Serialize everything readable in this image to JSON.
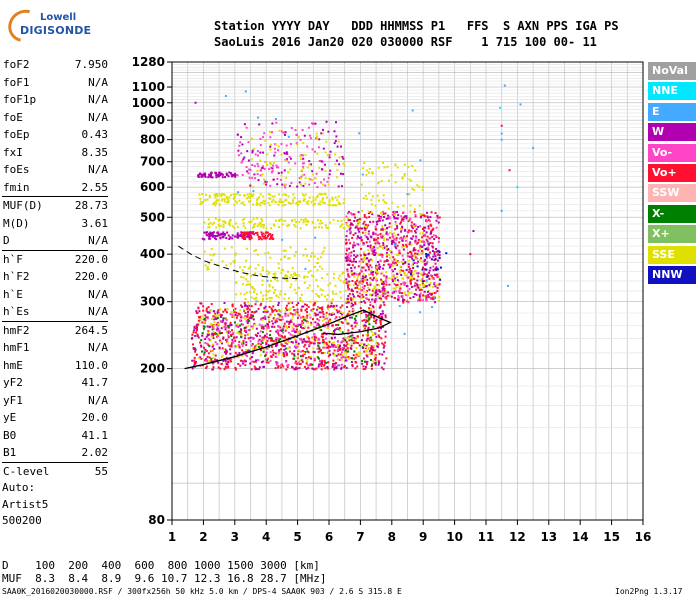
{
  "logo": {
    "line1": "Lowell",
    "line2": "DIGISONDE"
  },
  "header": {
    "row1": "Station YYYY DAY   DDD HHMMSS P1   FFS  S AXN PPS IGA PS",
    "row2": "SaoLuis 2016 Jan20 020 030000 RSF    1 715 100 00- 11"
  },
  "params": [
    [
      {
        "name": "foF2",
        "value": "7.950"
      },
      {
        "name": "foF1",
        "value": "N/A"
      },
      {
        "name": "foF1p",
        "value": "N/A"
      },
      {
        "name": "foE",
        "value": "N/A"
      },
      {
        "name": "foEp",
        "value": "0.43"
      },
      {
        "name": "fxI",
        "value": "8.35"
      },
      {
        "name": "foEs",
        "value": "N/A"
      },
      {
        "name": "fmin",
        "value": "2.55"
      }
    ],
    [
      {
        "name": "MUF(D)",
        "value": "28.73"
      },
      {
        "name": "M(D)",
        "value": "3.61"
      },
      {
        "name": "D",
        "value": "N/A"
      }
    ],
    [
      {
        "name": "h`F",
        "value": "220.0"
      },
      {
        "name": "h`F2",
        "value": "220.0"
      },
      {
        "name": "h`E",
        "value": "N/A"
      },
      {
        "name": "h`Es",
        "value": "N/A"
      }
    ],
    [
      {
        "name": "hmF2",
        "value": "264.5"
      },
      {
        "name": "hmF1",
        "value": "N/A"
      },
      {
        "name": "hmE",
        "value": "110.0"
      },
      {
        "name": "yF2",
        "value": "41.7"
      },
      {
        "name": "yF1",
        "value": "N/A"
      },
      {
        "name": "yE",
        "value": "20.0"
      },
      {
        "name": "B0",
        "value": "41.1"
      },
      {
        "name": "B1",
        "value": "2.02"
      }
    ],
    [
      {
        "name": "C-level",
        "value": "55"
      }
    ]
  ],
  "auto": [
    "Auto:",
    "Artist5",
    "500200"
  ],
  "muf_table": {
    "row1": "D    100  200  400  600  800 1000 1500 3000 [km]",
    "row2": "MUF  8.3  8.4  8.9  9.6 10.7 12.3 16.8 28.7 [MHz]"
  },
  "footer": {
    "left": "SAA0K_2016020030000.RSF / 300fx256h 50 kHz 5.0 km / DPS-4 SAA0K 903 / 2.6 S 315.8 E",
    "right": "Ion2Png 1.3.17"
  },
  "legend": [
    {
      "label": "NoVal",
      "color": "#a0a0a0"
    },
    {
      "label": "NNE",
      "color": "#00e8ff"
    },
    {
      "label": "E",
      "color": "#44aaff"
    },
    {
      "label": "W",
      "color": "#b000b0"
    },
    {
      "label": "Vo-",
      "color": "#ff44c8"
    },
    {
      "label": "Vo+",
      "color": "#ff1030"
    },
    {
      "label": "SSW",
      "color": "#ffb4b4"
    },
    {
      "label": "X-",
      "color": "#008000"
    },
    {
      "label": "X+",
      "color": "#80c060"
    },
    {
      "label": "SSE",
      "color": "#e0e000"
    },
    {
      "label": "NNW",
      "color": "#1010c0"
    }
  ],
  "chart_data": {
    "type": "scatter",
    "x_ticks": [
      "1",
      "2",
      "3",
      "4",
      "5",
      "6",
      "7",
      "8",
      "9",
      "10",
      "11",
      "12",
      "13",
      "14",
      "15",
      "16"
    ],
    "xlim": [
      1,
      16
    ],
    "y_ticks": [
      "80",
      "200",
      "300",
      "400",
      "500",
      "600",
      "700",
      "800",
      "900",
      "1000",
      "1100",
      "1280"
    ],
    "y_tick_values": [
      80,
      200,
      300,
      400,
      500,
      600,
      700,
      800,
      900,
      1000,
      1100,
      1280
    ],
    "y_scale": "log",
    "ylim": [
      80,
      1280
    ],
    "grid": true,
    "profile_curve": {
      "x": [
        1.4,
        2.0,
        3.0,
        4.0,
        5.0,
        6.0,
        6.6,
        7.1,
        7.6,
        7.95,
        7.6,
        7.0,
        6.3,
        5.8
      ],
      "y": [
        200,
        205,
        215,
        228,
        244,
        262,
        275,
        285,
        272,
        264.5,
        256,
        250,
        246,
        248
      ]
    },
    "trace_dashed": {
      "x": [
        1.2,
        1.6,
        2.0,
        2.6,
        3.2,
        3.8,
        4.4,
        5.0
      ],
      "y": [
        420,
        400,
        385,
        370,
        358,
        350,
        346,
        345
      ]
    },
    "echo_clusters": [
      {
        "x": [
          1.6,
          7.8
        ],
        "y": [
          200,
          300
        ],
        "color": "#ff1030",
        "n": 700
      },
      {
        "x": [
          1.6,
          7.8
        ],
        "y": [
          200,
          300
        ],
        "color": "#b000b0",
        "n": 350
      },
      {
        "x": [
          1.8,
          7.5
        ],
        "y": [
          210,
          290
        ],
        "color": "#e0e000",
        "n": 220
      },
      {
        "x": [
          1.8,
          7.5
        ],
        "y": [
          205,
          280
        ],
        "color": "#008000",
        "n": 90
      },
      {
        "x": [
          2.0,
          6.5
        ],
        "y": [
          205,
          280
        ],
        "color": "#ff44c8",
        "n": 150
      },
      {
        "x": [
          3.0,
          9.5
        ],
        "y": [
          300,
          360
        ],
        "color": "#e0e000",
        "n": 260
      },
      {
        "x": [
          6.5,
          9.5
        ],
        "y": [
          300,
          520
        ],
        "color": "#ff1030",
        "n": 360
      },
      {
        "x": [
          6.5,
          9.5
        ],
        "y": [
          300,
          520
        ],
        "color": "#b000b0",
        "n": 320
      },
      {
        "x": [
          6.5,
          9.5
        ],
        "y": [
          300,
          520
        ],
        "color": "#ff44c8",
        "n": 160
      },
      {
        "x": [
          7.0,
          9.0
        ],
        "y": [
          320,
          700
        ],
        "color": "#e0e000",
        "n": 160
      },
      {
        "x": [
          1.8,
          3.0
        ],
        "y": [
          640,
          660
        ],
        "color": "#b000b0",
        "n": 70
      },
      {
        "x": [
          1.8,
          3.6
        ],
        "y": [
          440,
          460
        ],
        "color": "#b000b0",
        "n": 90
      },
      {
        "x": [
          3.2,
          4.2
        ],
        "y": [
          440,
          460
        ],
        "color": "#ff1030",
        "n": 60
      },
      {
        "x": [
          1.8,
          6.5
        ],
        "y": [
          540,
          580
        ],
        "color": "#e0e000",
        "n": 180
      },
      {
        "x": [
          2.0,
          7.0
        ],
        "y": [
          470,
          500
        ],
        "color": "#e0e000",
        "n": 120
      },
      {
        "x": [
          2.0,
          6.0
        ],
        "y": [
          360,
          420
        ],
        "color": "#e0e000",
        "n": 80
      },
      {
        "x": [
          3.0,
          6.0
        ],
        "y": [
          600,
          900
        ],
        "color": "#ff44c8",
        "n": 110
      },
      {
        "x": [
          3.0,
          6.5
        ],
        "y": [
          600,
          900
        ],
        "color": "#b000b0",
        "n": 80
      },
      {
        "x": [
          3.5,
          6.5
        ],
        "y": [
          600,
          850
        ],
        "color": "#e0e000",
        "n": 70
      },
      {
        "x": [
          2.0,
          9.5
        ],
        "y": [
          200,
          1280
        ],
        "color": "#44aaff",
        "n": 25
      },
      {
        "x": [
          8.5,
          9.8
        ],
        "y": [
          340,
          420
        ],
        "color": "#1010c0",
        "n": 20
      }
    ],
    "outliers": [
      {
        "x": 11.6,
        "y": 1110,
        "color": "#44aaff"
      },
      {
        "x": 11.45,
        "y": 970,
        "color": "#00e8ff"
      },
      {
        "x": 12.1,
        "y": 990,
        "color": "#44aaff"
      },
      {
        "x": 11.5,
        "y": 870,
        "color": "#ff1030"
      },
      {
        "x": 11.5,
        "y": 830,
        "color": "#44aaff"
      },
      {
        "x": 11.5,
        "y": 800,
        "color": "#44aaff"
      },
      {
        "x": 12.5,
        "y": 760,
        "color": "#44aaff"
      },
      {
        "x": 11.75,
        "y": 665,
        "color": "#ff1030"
      },
      {
        "x": 12.0,
        "y": 600,
        "color": "#00e8ff"
      },
      {
        "x": 11.5,
        "y": 520,
        "color": "#44aaff"
      },
      {
        "x": 11.7,
        "y": 330,
        "color": "#44aaff"
      },
      {
        "x": 1.75,
        "y": 1000,
        "color": "#b000b0"
      },
      {
        "x": 10.6,
        "y": 460,
        "color": "#b000b0"
      },
      {
        "x": 10.5,
        "y": 400,
        "color": "#ff1030"
      }
    ]
  }
}
